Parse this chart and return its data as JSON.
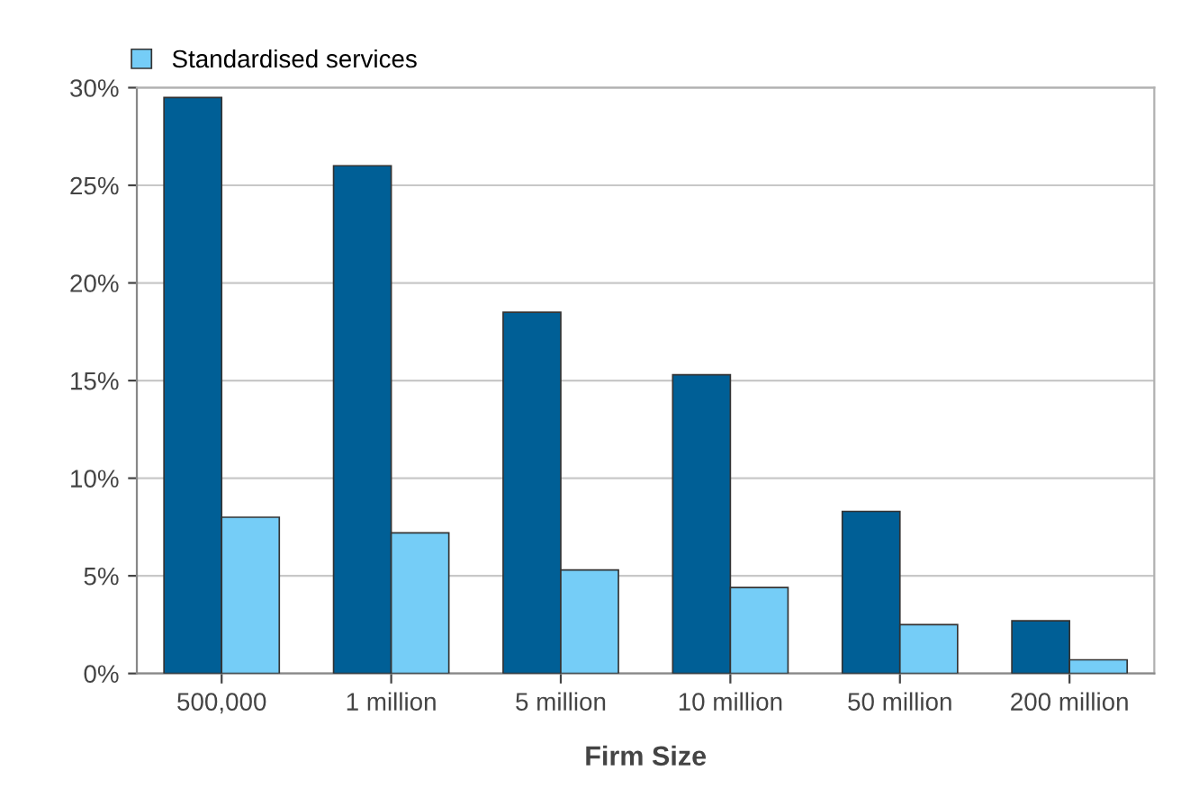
{
  "chart_data": {
    "type": "bar",
    "xlabel": "Firm Size",
    "categories": [
      "500,000",
      "1 million",
      "5 million",
      "10 million",
      "50 million",
      "200 million"
    ],
    "series": [
      {
        "color": "#005f96",
        "values": [
          29.5,
          26.0,
          18.5,
          15.3,
          8.3,
          2.7
        ]
      },
      {
        "name": "Standardised services",
        "color": "#75cdf7",
        "values": [
          8.0,
          7.2,
          5.3,
          4.4,
          2.5,
          0.7
        ]
      }
    ],
    "ylim": [
      0,
      30
    ],
    "yticks": [
      {
        "value": 0,
        "label": "0%"
      },
      {
        "value": 5,
        "label": "5%"
      },
      {
        "value": 10,
        "label": "10%"
      },
      {
        "value": 15,
        "label": "15%"
      },
      {
        "value": 20,
        "label": "20%"
      },
      {
        "value": 25,
        "label": "25%"
      },
      {
        "value": 30,
        "label": "30%"
      }
    ],
    "grid": "y",
    "legend": "top left"
  }
}
